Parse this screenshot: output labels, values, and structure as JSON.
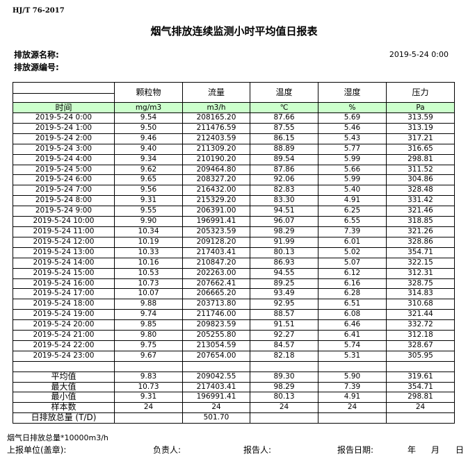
{
  "standard": "HJ/T  76-2017",
  "title": "烟气排放连续监测小时平均值日报表",
  "source_name_label": "排放源名称:",
  "source_no_label": "排放源编号:",
  "report_datetime": "2019-5-24 0:00",
  "columns": [
    "颗粒物",
    "流量",
    "温度",
    "湿度",
    "压力"
  ],
  "time_label": "时间",
  "units": [
    "mg/m3",
    "m3/h",
    "℃",
    "%",
    "Pa"
  ],
  "rows": [
    [
      "2019-5-24 0:00",
      "9.54",
      "208165.20",
      "87.66",
      "5.69",
      "313.59"
    ],
    [
      "2019-5-24 1:00",
      "9.50",
      "211476.59",
      "87.55",
      "5.46",
      "313.19"
    ],
    [
      "2019-5-24 2:00",
      "9.46",
      "212403.59",
      "86.15",
      "5.43",
      "317.21"
    ],
    [
      "2019-5-24 3:00",
      "9.40",
      "211309.20",
      "88.89",
      "5.77",
      "316.65"
    ],
    [
      "2019-5-24 4:00",
      "9.34",
      "210190.20",
      "89.54",
      "5.99",
      "298.81"
    ],
    [
      "2019-5-24 5:00",
      "9.62",
      "209464.80",
      "87.86",
      "5.66",
      "311.52"
    ],
    [
      "2019-5-24 6:00",
      "9.65",
      "208327.20",
      "92.06",
      "5.99",
      "304.86"
    ],
    [
      "2019-5-24 7:00",
      "9.56",
      "216432.00",
      "82.83",
      "5.40",
      "328.48"
    ],
    [
      "2019-5-24 8:00",
      "9.31",
      "215329.20",
      "83.30",
      "4.91",
      "331.42"
    ],
    [
      "2019-5-24 9:00",
      "9.55",
      "206391.00",
      "94.51",
      "6.25",
      "321.46"
    ],
    [
      "2019-5-24 10:00",
      "9.90",
      "196991.41",
      "96.07",
      "6.55",
      "318.85"
    ],
    [
      "2019-5-24 11:00",
      "10.34",
      "205323.59",
      "98.29",
      "7.39",
      "321.26"
    ],
    [
      "2019-5-24 12:00",
      "10.19",
      "209128.20",
      "91.99",
      "6.01",
      "328.86"
    ],
    [
      "2019-5-24 13:00",
      "10.33",
      "217403.41",
      "80.13",
      "5.02",
      "354.71"
    ],
    [
      "2019-5-24 14:00",
      "10.16",
      "210847.20",
      "86.93",
      "5.07",
      "322.15"
    ],
    [
      "2019-5-24 15:00",
      "10.53",
      "202263.00",
      "94.55",
      "6.12",
      "312.31"
    ],
    [
      "2019-5-24 16:00",
      "10.73",
      "207662.41",
      "89.25",
      "6.16",
      "328.75"
    ],
    [
      "2019-5-24 17:00",
      "10.07",
      "206665.20",
      "93.49",
      "6.28",
      "314.83"
    ],
    [
      "2019-5-24 18:00",
      "9.88",
      "203713.80",
      "92.95",
      "6.51",
      "310.68"
    ],
    [
      "2019-5-24 19:00",
      "9.74",
      "211746.00",
      "88.57",
      "6.08",
      "321.44"
    ],
    [
      "2019-5-24 20:00",
      "9.85",
      "209823.59",
      "91.51",
      "6.46",
      "332.72"
    ],
    [
      "2019-5-24 21:00",
      "9.80",
      "205255.80",
      "92.27",
      "6.41",
      "312.18"
    ],
    [
      "2019-5-24 22:00",
      "9.75",
      "213054.59",
      "84.57",
      "5.74",
      "328.67"
    ],
    [
      "2019-5-24 23:00",
      "9.67",
      "207654.00",
      "82.18",
      "5.31",
      "305.95"
    ]
  ],
  "summary": [
    [
      "平均值",
      "9.83",
      "209042.55",
      "89.30",
      "5.90",
      "319.61"
    ],
    [
      "最大值",
      "10.73",
      "217403.41",
      "98.29",
      "7.39",
      "354.71"
    ],
    [
      "最小值",
      "9.31",
      "196991.41",
      "80.13",
      "4.91",
      "298.81"
    ],
    [
      "样本数",
      "24",
      "24",
      "24",
      "24",
      "24"
    ],
    [
      "日排放总量 (T/D)",
      "",
      "501.70",
      "",
      "",
      ""
    ]
  ],
  "footer": {
    "note": "烟气日排放总量*10000m3/h",
    "unit_label": "上报单位(盖章):",
    "leader_label": "负责人:",
    "reporter_label": "报告人:",
    "date_label": "报告日期:",
    "year": "年",
    "month": "月",
    "day": "日"
  }
}
